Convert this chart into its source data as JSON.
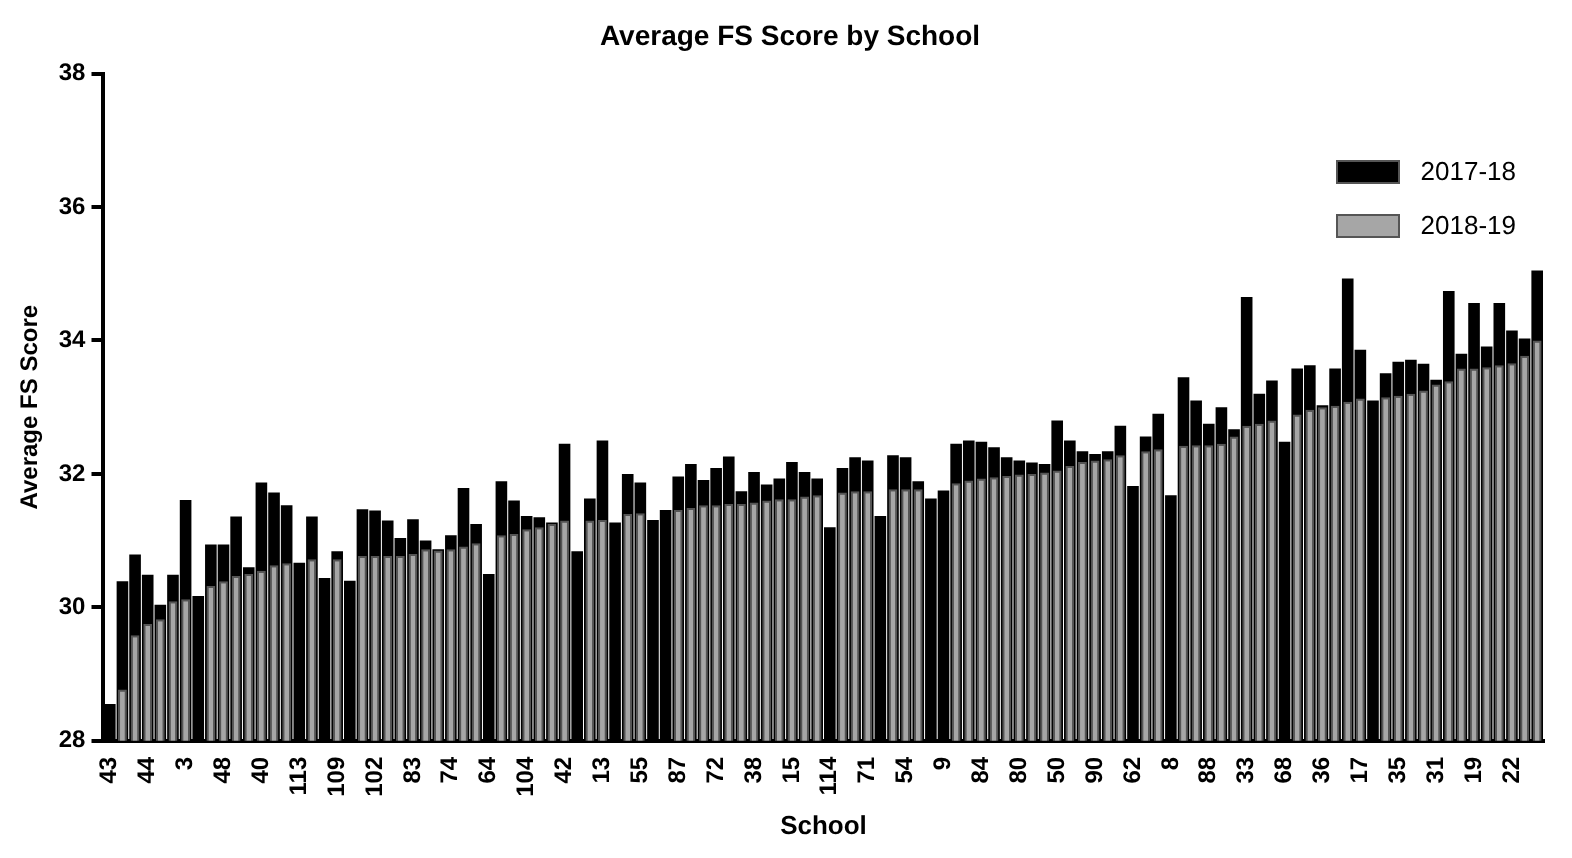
{
  "chart_data": {
    "type": "bar",
    "title": "Average FS Score by School",
    "xlabel": "School",
    "ylabel": "Average FS Score",
    "categories": [
      "43",
      null,
      null,
      "44",
      null,
      null,
      "3",
      null,
      null,
      "48",
      null,
      null,
      "40",
      null,
      null,
      "113",
      null,
      null,
      "109",
      null,
      null,
      "102",
      null,
      null,
      "83",
      null,
      null,
      "74",
      null,
      null,
      "64",
      null,
      null,
      "104",
      null,
      null,
      "42",
      null,
      null,
      "13",
      null,
      null,
      "55",
      null,
      null,
      "87",
      null,
      null,
      "72",
      null,
      null,
      "38",
      null,
      null,
      "15",
      null,
      null,
      "114",
      null,
      null,
      "71",
      null,
      null,
      "54",
      null,
      null,
      "9",
      null,
      null,
      "84",
      null,
      null,
      "80",
      null,
      null,
      "50",
      null,
      null,
      "90",
      null,
      null,
      "62",
      null,
      null,
      "8",
      null,
      null,
      "88",
      null,
      null,
      "33",
      null,
      null,
      "68",
      null,
      null,
      "36",
      null,
      null,
      "17",
      null,
      null,
      "35",
      null,
      null,
      "31",
      null,
      null,
      "19",
      null,
      null,
      "22",
      null,
      null
    ],
    "series": [
      {
        "name": "2017-18",
        "color": "#000000",
        "values": [
          28.55,
          30.39,
          30.79,
          30.49,
          30.04,
          30.49,
          31.61,
          30.17,
          30.94,
          30.94,
          31.36,
          30.6,
          31.87,
          31.72,
          31.53,
          30.67,
          31.36,
          30.44,
          30.84,
          30.4,
          31.47,
          31.45,
          31.3,
          31.04,
          31.32,
          31.0,
          30.87,
          31.08,
          31.79,
          31.25,
          30.5,
          31.89,
          31.6,
          31.37,
          31.35,
          31.27,
          32.45,
          30.84,
          31.63,
          32.5,
          31.27,
          32.0,
          31.87,
          31.31,
          31.46,
          31.96,
          32.15,
          31.91,
          32.09,
          32.26,
          31.74,
          32.03,
          31.84,
          31.93,
          32.18,
          32.03,
          31.93,
          31.2,
          32.09,
          32.25,
          32.2,
          31.37,
          32.28,
          32.25,
          31.89,
          31.63,
          31.75,
          32.45,
          32.5,
          32.48,
          32.4,
          32.25,
          32.2,
          32.17,
          32.15,
          32.8,
          32.5,
          32.34,
          32.3,
          32.34,
          32.72,
          31.82,
          32.56,
          32.9,
          31.68,
          33.45,
          33.1,
          32.75,
          33.0,
          32.67,
          34.65,
          33.2,
          33.4,
          32.48,
          33.58,
          33.63,
          33.03,
          33.58,
          34.93,
          33.86,
          33.1,
          33.51,
          33.68,
          33.71,
          33.65,
          33.41,
          34.74,
          33.8,
          34.56,
          33.91,
          34.56,
          34.15,
          34.03,
          35.05
        ]
      },
      {
        "name": "2018-19",
        "color": "#a6a6a6",
        "values": [
          null,
          28.77,
          29.58,
          29.75,
          29.82,
          30.09,
          30.12,
          null,
          30.32,
          30.39,
          30.47,
          30.5,
          30.55,
          30.63,
          30.66,
          null,
          30.72,
          null,
          30.72,
          null,
          30.77,
          30.77,
          30.77,
          30.77,
          30.8,
          30.87,
          30.85,
          30.87,
          30.91,
          30.96,
          null,
          31.08,
          31.1,
          31.17,
          31.2,
          31.25,
          31.3,
          null,
          31.3,
          31.31,
          null,
          31.4,
          31.41,
          null,
          null,
          31.46,
          31.49,
          31.53,
          31.53,
          31.55,
          31.55,
          31.57,
          31.6,
          31.62,
          31.62,
          31.66,
          31.68,
          null,
          31.72,
          31.74,
          31.74,
          null,
          31.77,
          31.77,
          31.77,
          null,
          null,
          31.86,
          31.9,
          31.93,
          31.95,
          31.97,
          31.99,
          32.0,
          32.02,
          32.05,
          32.12,
          32.18,
          32.2,
          32.22,
          32.28,
          null,
          32.34,
          32.37,
          null,
          32.42,
          32.43,
          32.43,
          32.45,
          32.56,
          32.72,
          32.75,
          32.8,
          null,
          32.89,
          32.96,
          33.0,
          33.02,
          33.08,
          33.13,
          null,
          33.15,
          33.17,
          33.2,
          33.25,
          33.34,
          33.39,
          33.58,
          33.58,
          33.6,
          33.63,
          33.66,
          33.77,
          34.0
        ]
      }
    ],
    "ylim": [
      28,
      38
    ],
    "yticks": [
      28,
      30,
      32,
      34,
      36,
      38
    ],
    "grid": false,
    "legend": "top right"
  }
}
